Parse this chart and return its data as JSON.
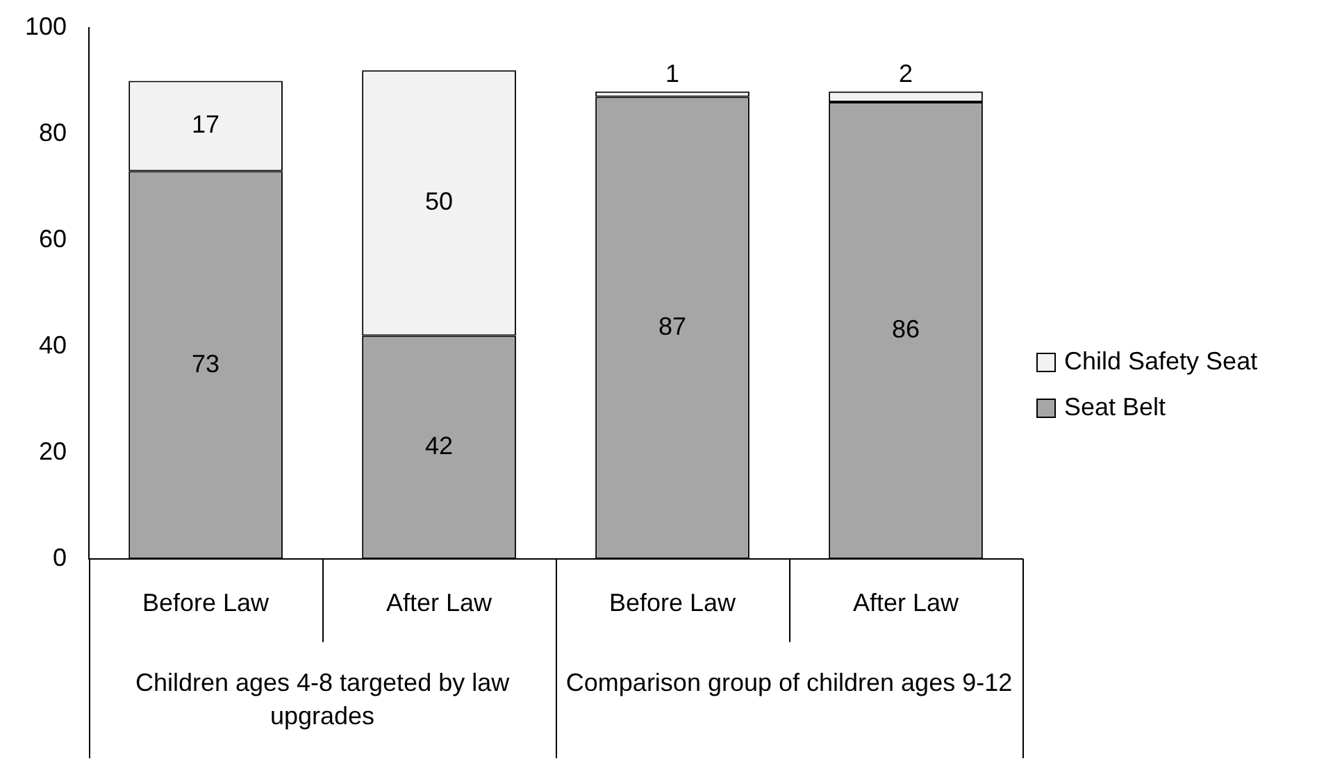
{
  "chart_data": {
    "type": "bar",
    "stacked": true,
    "categories": [
      "Before Law",
      "After Law",
      "Before Law",
      "After Law"
    ],
    "series": [
      {
        "name": "Seat Belt",
        "color": "#a6a6a6",
        "values": [
          73,
          42,
          87,
          86
        ]
      },
      {
        "name": "Child Safety Seat",
        "color": "#f2f2f2",
        "values": [
          17,
          50,
          1,
          2
        ]
      }
    ],
    "ylim": [
      0,
      100
    ],
    "yticks": [
      0,
      20,
      40,
      60,
      80,
      100
    ],
    "grid": false,
    "legend": "right",
    "data_labels": true,
    "annotations": [
      "Children ages 4-8 targeted by law upgrades",
      "Comparison group of children ages 9-12"
    ]
  }
}
